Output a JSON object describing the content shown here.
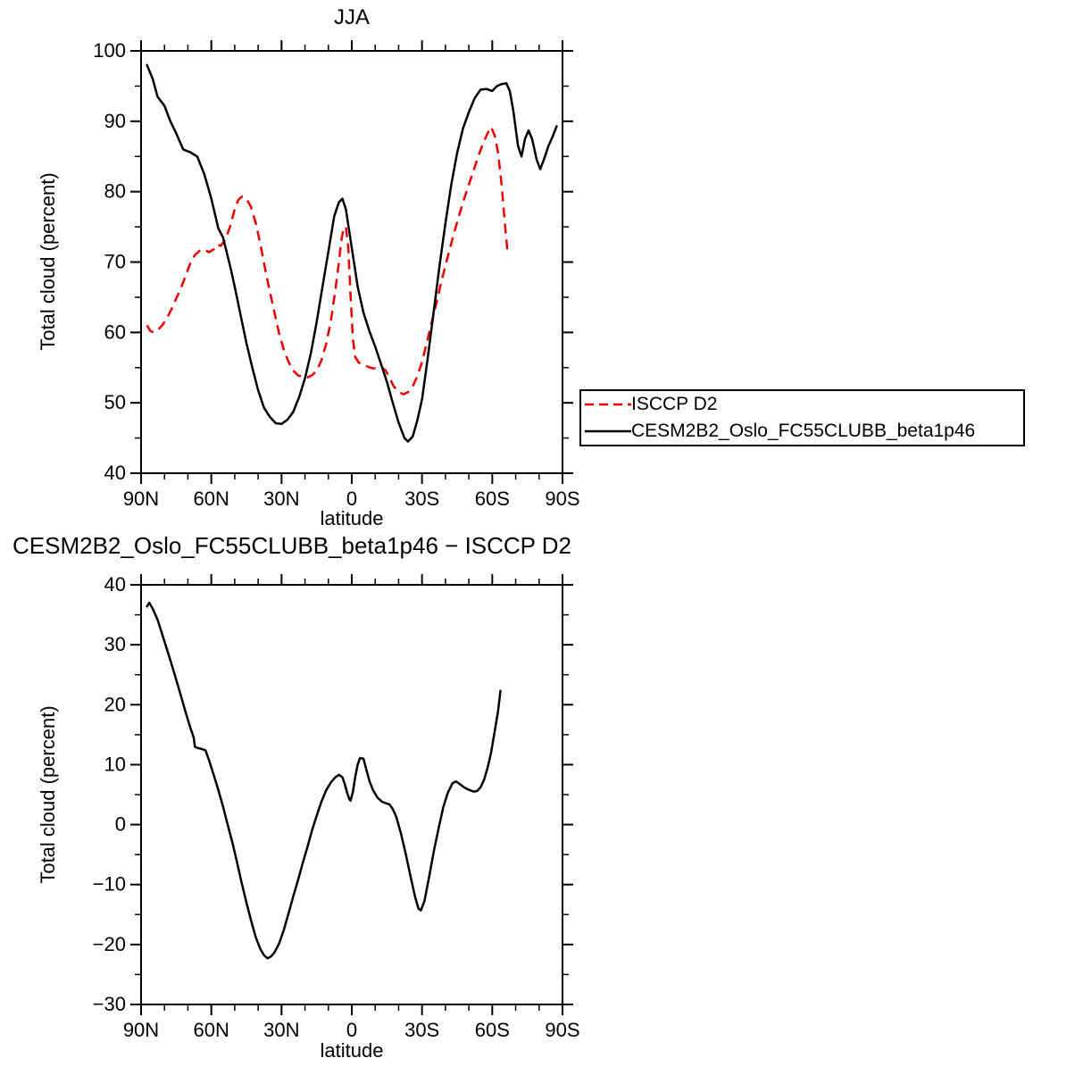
{
  "chart_data": [
    {
      "type": "line",
      "title": "JJA",
      "xlabel": "latitude",
      "ylabel": "Total cloud (percent)",
      "xlim": [
        90,
        -90
      ],
      "ylim": [
        40,
        100
      ],
      "grid": false,
      "legend_position": "outside-right",
      "xticks": {
        "major": [
          90,
          60,
          30,
          0,
          -30,
          -60,
          -90
        ],
        "labels": [
          "90N",
          "60N",
          "30N",
          "0",
          "30S",
          "60S",
          "90S"
        ],
        "minor_step": 10
      },
      "yticks": {
        "major": [
          40,
          50,
          60,
          70,
          80,
          90,
          100
        ],
        "labels": [
          "40",
          "50",
          "60",
          "70",
          "80",
          "90",
          "100"
        ],
        "minor_step": 5
      },
      "series": [
        {
          "name": "ISCCP D2",
          "color": "#e80000",
          "style": "dashed",
          "x": [
            87.5,
            86,
            84.5,
            83,
            81,
            79,
            77,
            75,
            73,
            71,
            69,
            67,
            65,
            63,
            61,
            59,
            57.5,
            56,
            54,
            52,
            50,
            48.5,
            47,
            45,
            43,
            41,
            39,
            37,
            35,
            33,
            31,
            29,
            27,
            25,
            23,
            21,
            19,
            17,
            15,
            13,
            11,
            9,
            7,
            5.5,
            4.5,
            3.5,
            2.5,
            1.5,
            0.5,
            -0.5,
            -1.5,
            -3,
            -5,
            -7,
            -9,
            -11,
            -13,
            -14.5,
            -16,
            -18,
            -20,
            -22,
            -24,
            -26,
            -28,
            -30,
            -32,
            -34,
            -36,
            -38,
            -40,
            -42,
            -44,
            -46,
            -48,
            -50,
            -52,
            -54,
            -56,
            -58,
            -59.5,
            -61,
            -62.5,
            -64,
            -65.5,
            -66.5
          ],
          "y": [
            61,
            60.2,
            60,
            60.3,
            61,
            62,
            63.3,
            64.8,
            66.3,
            68,
            69.8,
            71,
            71.6,
            71.8,
            71.4,
            71.8,
            72.5,
            72.3,
            73.2,
            75,
            77.5,
            78.8,
            79.3,
            79,
            77.8,
            75.5,
            72.5,
            69,
            65.8,
            62.8,
            59.8,
            57.5,
            55.8,
            54.6,
            53.9,
            53.7,
            53.6,
            53.9,
            54.6,
            56,
            58.3,
            61.5,
            66,
            70,
            73,
            74.8,
            75,
            72,
            65,
            59,
            56.5,
            55.7,
            55.4,
            55.1,
            54.9,
            54.9,
            55,
            54.6,
            53.6,
            52.3,
            51.6,
            51.2,
            51.5,
            52.3,
            53.8,
            55.8,
            58.5,
            61.3,
            64,
            66.8,
            69.5,
            72,
            74.5,
            76.8,
            79,
            81,
            83,
            85,
            86.8,
            88.3,
            89.2,
            88,
            85.5,
            81,
            75,
            71.5
          ]
        },
        {
          "name": "CESM2B2_Oslo_FC55CLUBB_beta1p46",
          "color": "#000000",
          "style": "solid",
          "x": [
            87.5,
            85,
            83,
            80,
            77.5,
            75,
            72,
            69,
            66,
            63,
            60,
            57,
            55,
            52,
            50,
            47.5,
            45,
            42.5,
            40,
            37.5,
            35,
            32.5,
            30,
            27.5,
            25,
            22.5,
            20,
            17.5,
            15,
            12.5,
            10,
            7.5,
            5.5,
            4,
            2.5,
            0,
            -2.5,
            -5,
            -7.5,
            -10,
            -12.5,
            -15,
            -17.5,
            -20,
            -22.5,
            -24,
            -26,
            -28,
            -30,
            -32.5,
            -35,
            -37.5,
            -40,
            -42.5,
            -45,
            -47.5,
            -50,
            -52.5,
            -55,
            -57.5,
            -60,
            -62,
            -64,
            -66,
            -67.5,
            -69,
            -71,
            -72.5,
            -74,
            -75.5,
            -77,
            -79,
            -80.5,
            -82,
            -84,
            -86,
            -87.5
          ],
          "y": [
            98,
            96,
            93.5,
            92.2,
            90,
            88.3,
            86,
            85.6,
            85,
            82.5,
            79,
            74.8,
            73.5,
            69.5,
            66.5,
            62.5,
            58.5,
            55,
            51.8,
            49.3,
            48,
            47.1,
            47,
            47.6,
            48.7,
            50.8,
            53.5,
            57,
            61.5,
            66.5,
            71.5,
            76.5,
            78.5,
            79,
            77.5,
            72,
            66.5,
            62.8,
            60.2,
            58,
            55.5,
            53,
            50,
            47.2,
            45,
            44.5,
            45.2,
            47.5,
            50.5,
            56.5,
            63,
            69.5,
            75.5,
            81,
            85.5,
            89,
            91.3,
            93.3,
            94.5,
            94.6,
            94.3,
            95,
            95.3,
            95.4,
            94.3,
            91.5,
            86.5,
            85,
            87.5,
            88.7,
            87.5,
            84.5,
            83.2,
            84.5,
            86.5,
            88,
            89.3
          ]
        }
      ]
    },
    {
      "type": "line",
      "title": "CESM2B2_Oslo_FC55CLUBB_beta1p46 − ISCCP D2",
      "xlabel": "latitude",
      "ylabel": "Total cloud (percent)",
      "xlim": [
        90,
        -90
      ],
      "ylim": [
        -30,
        40
      ],
      "grid": false,
      "xticks": {
        "major": [
          90,
          60,
          30,
          0,
          -30,
          -60,
          -90
        ],
        "labels": [
          "90N",
          "60N",
          "30N",
          "0",
          "30S",
          "60S",
          "90S"
        ],
        "minor_step": 10
      },
      "yticks": {
        "major": [
          -30,
          -20,
          -10,
          0,
          10,
          20,
          30,
          40
        ],
        "labels": [
          "−30",
          "−20",
          "−10",
          "0",
          "10",
          "20",
          "30",
          "40"
        ],
        "minor_step": 5
      },
      "series": [
        {
          "name": "CESM2B2_Oslo_FC55CLUBB_beta1p46 minus ISCCP D2",
          "color": "#000000",
          "style": "solid",
          "x": [
            87.5,
            86.5,
            85,
            83,
            81,
            79,
            77,
            75,
            73,
            71,
            69,
            67.5,
            67,
            66,
            64,
            62.5,
            61,
            59,
            57,
            55,
            53,
            51,
            49,
            47,
            45,
            43,
            41,
            39,
            37.5,
            36,
            34.5,
            33,
            31,
            29,
            27,
            25,
            23,
            21,
            19,
            17,
            15,
            13,
            11,
            9,
            7,
            5.5,
            4,
            3,
            2,
            1,
            0.5,
            -0.5,
            -1.5,
            -2.5,
            -3.5,
            -5,
            -6,
            -7.5,
            -9,
            -11,
            -13,
            -15,
            -16,
            -17.5,
            -19,
            -21,
            -23,
            -25,
            -27,
            -28.5,
            -29.5,
            -31,
            -33,
            -35,
            -37,
            -39,
            -41,
            -43,
            -44.5,
            -46,
            -48,
            -50,
            -52,
            -53.5,
            -55,
            -56.5,
            -58,
            -59.5,
            -61,
            -62.5,
            -63.5
          ],
          "y": [
            36.4,
            37,
            36,
            34.2,
            31.8,
            29.3,
            26.8,
            24.2,
            21.5,
            18.8,
            16.2,
            14.5,
            13,
            12.8,
            12.6,
            12.4,
            10.8,
            8.3,
            5.8,
            3,
            0,
            -3,
            -6.3,
            -9.8,
            -13,
            -16,
            -18.8,
            -20.8,
            -21.8,
            -22.3,
            -22,
            -21.3,
            -19.8,
            -17.5,
            -14.8,
            -12,
            -9.3,
            -6.5,
            -3.8,
            -1,
            1.5,
            3.8,
            5.7,
            7,
            7.9,
            8.3,
            7.9,
            6.8,
            5.3,
            4.2,
            4,
            5.5,
            8,
            10,
            11.1,
            11,
            9.5,
            7.3,
            5.8,
            4.5,
            3.8,
            3.5,
            3.4,
            2.6,
            1.3,
            -1.5,
            -4.8,
            -8.5,
            -12,
            -14,
            -14.3,
            -12.8,
            -8.8,
            -4.5,
            -0.8,
            2.8,
            5.3,
            6.9,
            7.2,
            6.8,
            6.2,
            5.8,
            5.5,
            5.6,
            6.2,
            7.5,
            9.5,
            12,
            15.5,
            19,
            22.3
          ]
        }
      ]
    }
  ]
}
